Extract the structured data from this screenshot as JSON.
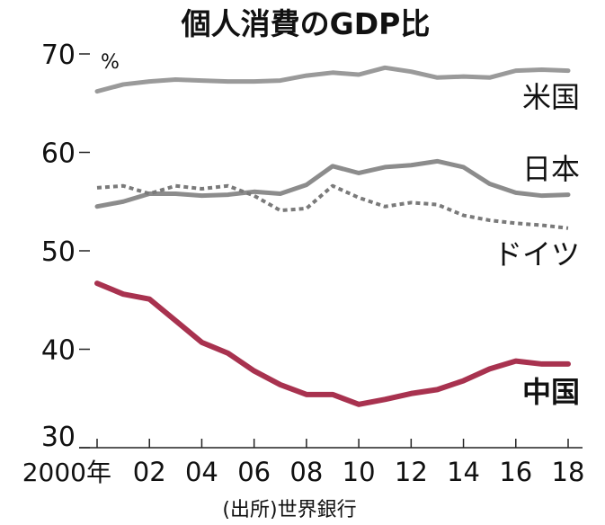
{
  "chart_data": {
    "type": "line",
    "title": "個人消費のGDP比",
    "ylabel": "%",
    "source": "(出所)世界銀行",
    "ylim": [
      30,
      70
    ],
    "yticks": [
      "30",
      "40",
      "50",
      "60",
      "70"
    ],
    "x": [
      2000,
      2001,
      2002,
      2003,
      2004,
      2005,
      2006,
      2007,
      2008,
      2009,
      2010,
      2011,
      2012,
      2013,
      2014,
      2015,
      2016,
      2017,
      2018
    ],
    "xtick_labels": [
      "2000年",
      "02",
      "04",
      "06",
      "08",
      "10",
      "12",
      "14",
      "16",
      "18"
    ],
    "grid": false,
    "series": [
      {
        "name": "米国",
        "color": "#9a9a9a",
        "style": "solid",
        "values": [
          66.2,
          66.9,
          67.2,
          67.4,
          67.3,
          67.2,
          67.2,
          67.3,
          67.8,
          68.1,
          67.9,
          68.6,
          68.2,
          67.6,
          67.7,
          67.6,
          68.3,
          68.4,
          68.3
        ]
      },
      {
        "name": "日本",
        "color": "#8c8c8c",
        "style": "solid",
        "values": [
          54.5,
          55.0,
          55.8,
          55.8,
          55.6,
          55.7,
          56.0,
          55.8,
          56.7,
          58.6,
          57.9,
          58.5,
          58.7,
          59.1,
          58.5,
          56.8,
          55.9,
          55.6,
          55.7
        ]
      },
      {
        "name": "ドイツ",
        "color": "#7a7a7a",
        "style": "dotted",
        "values": [
          56.4,
          56.6,
          55.8,
          56.6,
          56.3,
          56.6,
          55.6,
          54.1,
          54.3,
          56.6,
          55.4,
          54.5,
          54.9,
          54.7,
          53.6,
          53.1,
          52.8,
          52.6,
          52.3
        ]
      },
      {
        "name": "中国",
        "color": "#a8324f",
        "style": "solid",
        "bold_label": true,
        "values": [
          46.7,
          45.6,
          45.1,
          42.9,
          40.7,
          39.6,
          37.8,
          36.4,
          35.4,
          35.4,
          34.4,
          34.9,
          35.5,
          35.9,
          36.8,
          38.0,
          38.8,
          38.5,
          38.5
        ]
      }
    ]
  }
}
